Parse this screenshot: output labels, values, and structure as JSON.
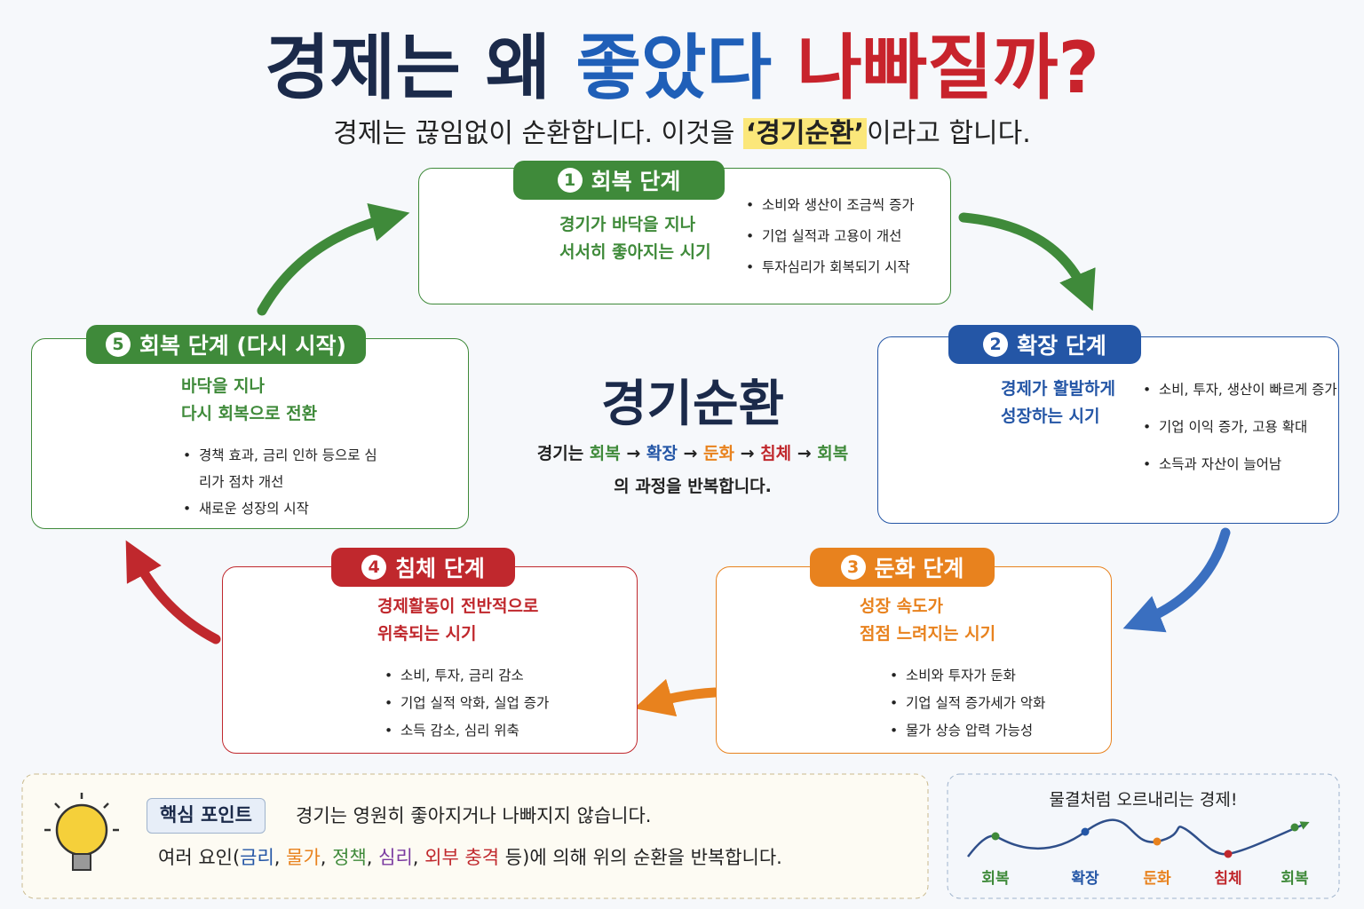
{
  "title": {
    "parts": [
      {
        "text": "경제는 왜",
        "color": "#1b2a4a"
      },
      {
        "text": "좋았다",
        "color": "#1f5fb8"
      },
      {
        "text": "나빠질까?",
        "color": "#c8232c"
      }
    ]
  },
  "subtitle": {
    "before": "경제는 끊임없이 순환합니다. 이것을 ",
    "highlight": "‘경기순환’",
    "after": "이라고 합니다."
  },
  "stages": [
    {
      "number": "1",
      "label": "회복 단계",
      "color": "#3f8a3a",
      "description": [
        "경기가 바닥을 지나",
        "서서히 좋아지는 시기"
      ],
      "bullets": [
        "소비와 생산이 조금씩 증가",
        "기업 실적과 고용이 개선",
        "투자심리가 회복되기 시작"
      ]
    },
    {
      "number": "2",
      "label": "확장 단계",
      "color": "#2456a6",
      "description": [
        "경제가 활발하게",
        "성장하는 시기"
      ],
      "bullets": [
        "소비, 투자, 생산이 빠르게 증가",
        "기업 이익 증가, 고용 확대",
        "소득과 자산이 늘어남"
      ]
    },
    {
      "number": "3",
      "label": "둔화 단계",
      "color": "#e8821e",
      "description": [
        "성장 속도가",
        "점점 느려지는 시기"
      ],
      "bullets": [
        "소비와 투자가 둔화",
        "기업 실적 증가세가 악화",
        "물가 상승 압력 가능성"
      ]
    },
    {
      "number": "4",
      "label": "침체 단계",
      "color": "#c0282d",
      "description": [
        "경제활동이 전반적으로",
        "위축되는 시기"
      ],
      "bullets": [
        "소비, 투자, 금리 감소",
        "기업 실적 악화, 실업 증가",
        "소득 감소, 심리 위축"
      ]
    },
    {
      "number": "5",
      "label": "회복 단계 (다시 시작)",
      "color": "#3f8a3a",
      "description": [
        "바닥을 지나",
        "다시 회복으로 전환"
      ],
      "bullets": [
        "경책 효과, 금리 인하 등으로 심리가 점차 개선",
        "새로운 성장의 시작"
      ]
    }
  ],
  "center": {
    "title": "경기순환",
    "lines": [
      [
        {
          "text": "경기는 ",
          "color": "#222"
        },
        {
          "text": "회복",
          "color": "#3f8a3a"
        },
        {
          "text": " → ",
          "color": "#222"
        },
        {
          "text": "확장",
          "color": "#2456a6"
        },
        {
          "text": " → ",
          "color": "#222"
        },
        {
          "text": "둔화",
          "color": "#e8821e"
        },
        {
          "text": " → ",
          "color": "#222"
        },
        {
          "text": "침체",
          "color": "#c0282d"
        },
        {
          "text": " → ",
          "color": "#222"
        },
        {
          "text": "회복",
          "color": "#3f8a3a"
        }
      ],
      [
        {
          "text": "의 과정을 반복합니다.",
          "color": "#222"
        }
      ]
    ]
  },
  "key_point": {
    "tag": "핵심 포인트",
    "line1": "경기는 영원히 좋아지거나 나빠지지 않습니다.",
    "line2": [
      {
        "text": "여러 요인(",
        "color": "#222"
      },
      {
        "text": "금리",
        "color": "#2456a6"
      },
      {
        "text": ", ",
        "color": "#222"
      },
      {
        "text": "물가",
        "color": "#e8821e"
      },
      {
        "text": ", ",
        "color": "#222"
      },
      {
        "text": "정책",
        "color": "#3f8a3a"
      },
      {
        "text": ", ",
        "color": "#222"
      },
      {
        "text": "심리",
        "color": "#7a3aa0"
      },
      {
        "text": ", ",
        "color": "#222"
      },
      {
        "text": "외부 충격",
        "color": "#c0282d"
      },
      {
        "text": " 등)에 의해 위의 순환을 반복합니다.",
        "color": "#222"
      }
    ]
  },
  "wave": {
    "title": "물결처럼 오르내리는 경제!",
    "labels": [
      {
        "text": "회복",
        "color": "#3f8a3a"
      },
      {
        "text": "확장",
        "color": "#2456a6"
      },
      {
        "text": "둔화",
        "color": "#e8821e"
      },
      {
        "text": "침체",
        "color": "#c0282d"
      },
      {
        "text": "회복",
        "color": "#3f8a3a"
      }
    ]
  }
}
